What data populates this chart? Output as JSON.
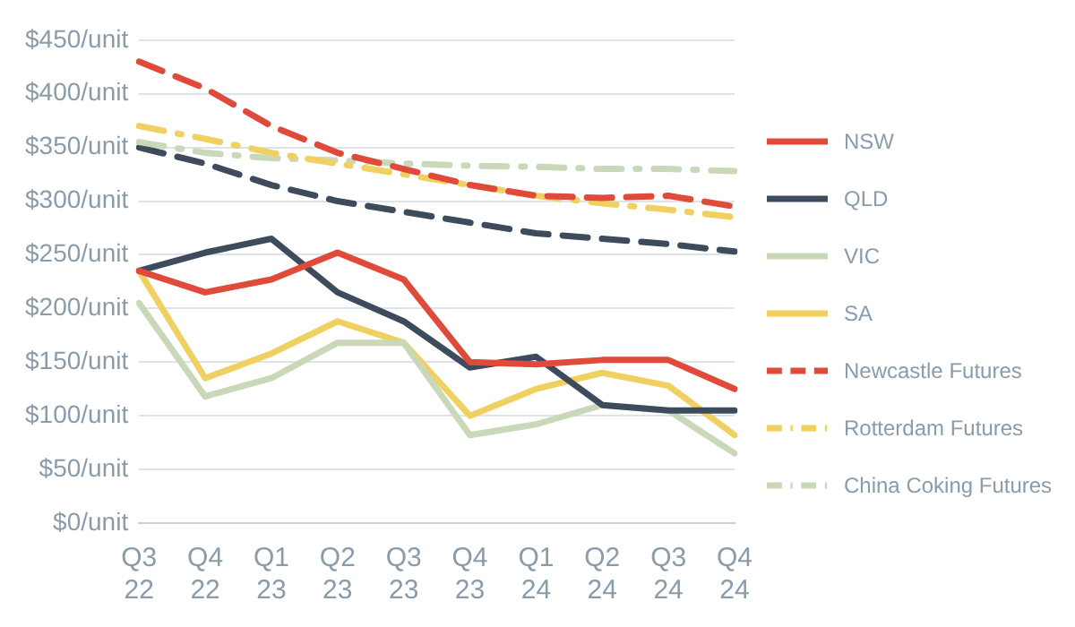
{
  "chart_data": {
    "type": "line",
    "categories": [
      "Q3 22",
      "Q4 22",
      "Q1 23",
      "Q2 23",
      "Q3 23",
      "Q4 23",
      "Q1 24",
      "Q2 24",
      "Q3 24",
      "Q4 24"
    ],
    "series": [
      {
        "name": "NSW",
        "color": "#e04a3a",
        "line_style": "solid",
        "values": [
          235,
          215,
          227,
          252,
          227,
          150,
          148,
          152,
          152,
          125
        ]
      },
      {
        "name": "QLD",
        "color": "#3d4b5c",
        "line_style": "solid",
        "values": [
          235,
          252,
          265,
          215,
          188,
          145,
          155,
          110,
          105,
          105
        ]
      },
      {
        "name": "VIC",
        "color": "#c8d8b8",
        "line_style": "solid",
        "values": [
          205,
          118,
          135,
          168,
          168,
          82,
          92,
          110,
          105,
          65
        ]
      },
      {
        "name": "SA",
        "color": "#f0d060",
        "line_style": "solid",
        "values": [
          235,
          135,
          158,
          188,
          168,
          100,
          125,
          140,
          128,
          82
        ]
      },
      {
        "name": "Newcastle Futures",
        "color": "#e04a3a",
        "line_style": "dashed",
        "values": [
          430,
          405,
          370,
          345,
          330,
          315,
          305,
          303,
          305,
          295
        ]
      },
      {
        "name": "Rotterdam Futures",
        "color": "#f0d060",
        "line_style": "dashdot",
        "values": [
          370,
          358,
          345,
          335,
          325,
          315,
          305,
          298,
          292,
          285
        ]
      },
      {
        "name": "China Coking Futures",
        "color": "#c8d8b8",
        "line_style": "dashdot",
        "values": [
          355,
          345,
          340,
          338,
          335,
          333,
          332,
          330,
          330,
          328
        ]
      },
      {
        "color": "#3d4b5c",
        "line_style": "dashed",
        "values": [
          350,
          335,
          315,
          300,
          290,
          280,
          270,
          265,
          260,
          253
        ]
      }
    ],
    "ylim": [
      0,
      450
    ],
    "yticks": [
      {
        "value": 0,
        "label": "$0/unit"
      },
      {
        "value": 50,
        "label": "$50/unit"
      },
      {
        "value": 100,
        "label": "$100/unit"
      },
      {
        "value": 150,
        "label": "$150/unit"
      },
      {
        "value": 200,
        "label": "$200/unit"
      },
      {
        "value": 250,
        "label": "$250/unit"
      },
      {
        "value": 300,
        "label": "$300/unit"
      },
      {
        "value": 350,
        "label": "$350/unit"
      },
      {
        "value": 400,
        "label": "$400/unit"
      },
      {
        "value": 450,
        "label": "$450/unit"
      }
    ],
    "grid": "y",
    "legend": "right",
    "marker": "none"
  }
}
